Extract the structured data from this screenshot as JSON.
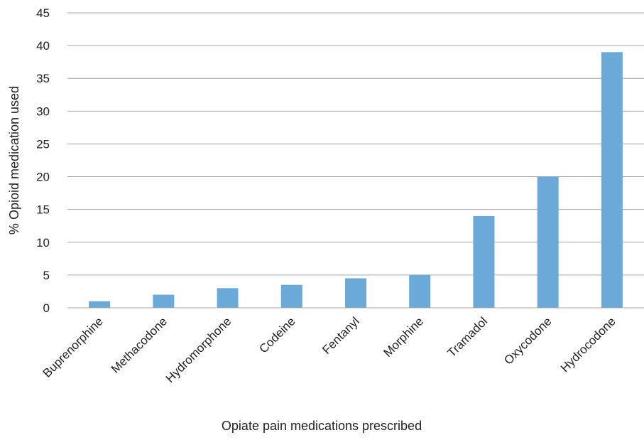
{
  "chart_data": {
    "type": "bar",
    "title": "",
    "xlabel": "Opiate pain medications prescribed",
    "ylabel": "% Opioid medication used",
    "categories": [
      "Buprenorphine",
      "Methacodone",
      "Hydromorphone",
      "Codeine",
      "Fentanyl",
      "Morphine",
      "Tramadol",
      "Oxycodone",
      "Hydrocodone"
    ],
    "values": [
      1,
      2,
      3,
      3.5,
      4.5,
      5,
      14,
      20,
      39
    ],
    "ylim": [
      0,
      45
    ],
    "yticks": [
      "0",
      "5",
      "10",
      "15",
      "20",
      "25",
      "30",
      "35",
      "40",
      "45"
    ],
    "grid": true,
    "legend": "none",
    "bar_color": "#6aa9d8"
  }
}
